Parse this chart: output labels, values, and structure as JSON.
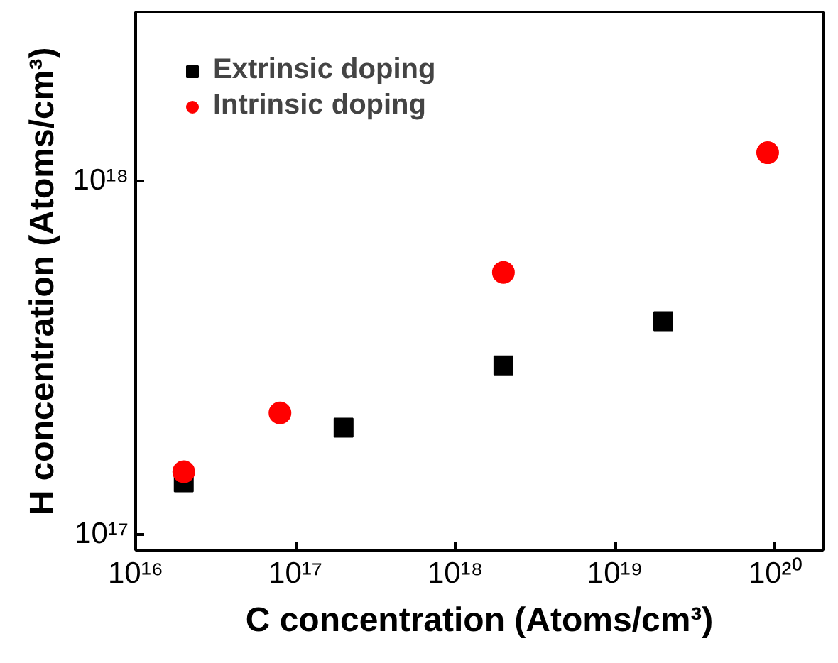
{
  "chart_data": {
    "type": "scatter",
    "xlabel": "C concentration (Atoms/cm³)",
    "ylabel": "H concentration (Atoms/cm³)",
    "log": "xy",
    "xlim": [
      1e+16,
      2e+20
    ],
    "ylim": [
      9e+16,
      3e+18
    ],
    "xticks": [
      {
        "value": 1e+16,
        "label": "10¹⁶"
      },
      {
        "value": 1e+17,
        "label": "10¹⁷"
      },
      {
        "value": 1e+18,
        "label": "10¹⁸"
      },
      {
        "value": 1e+19,
        "label": "10¹⁹"
      },
      {
        "value": 1e+20,
        "label": "10²⁰"
      }
    ],
    "yticks": [
      {
        "value": 1e+17,
        "label": "10¹⁷"
      },
      {
        "value": 1e+18,
        "label": "10¹⁸"
      }
    ],
    "grid": false,
    "legend": "top left",
    "series": [
      {
        "name": "Extrinsic doping",
        "color": "#000000",
        "marker": "square",
        "x": [
          2e+16,
          2e+17,
          2e+18,
          2e+19
        ],
        "values": [
          1.4e+17,
          2e+17,
          3e+17,
          4e+17
        ]
      },
      {
        "name": "Intrinsic doping",
        "color": "#ff0000",
        "marker": "circle",
        "x": [
          2e+16,
          8e+16,
          2e+18,
          9e+19
        ],
        "values": [
          1.5e+17,
          2.2e+17,
          5.5e+17,
          1.2e+18
        ]
      }
    ]
  }
}
